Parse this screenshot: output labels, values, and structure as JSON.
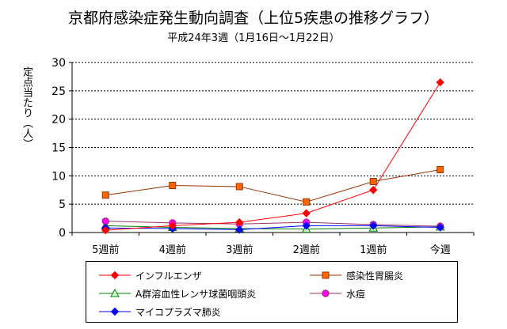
{
  "chart_data": {
    "type": "line",
    "title": "京都府感染症発生動向調査（上位5疾患の推移グラフ）",
    "subtitle": "平成24年3週（1月16日～1月22日）",
    "ylabel": "定点当たり（人）",
    "xlabel": "",
    "categories": [
      "5週前",
      "4週前",
      "3週前",
      "2週前",
      "1週前",
      "今週"
    ],
    "ylim": [
      0,
      30
    ],
    "yticks": [
      0,
      5,
      10,
      15,
      20,
      25,
      30
    ],
    "grid": true,
    "legend_position": "bottom",
    "series": [
      {
        "name": "インフルエンザ",
        "color": "#ff0000",
        "marker": "diamond",
        "marker_fill": "#ff0000",
        "values": [
          0.4,
          1.2,
          1.8,
          3.4,
          7.5,
          26.5
        ]
      },
      {
        "name": "感染性胃腸炎",
        "color": "#993300",
        "marker": "square",
        "marker_fill": "#ff6600",
        "values": [
          6.6,
          8.3,
          8.1,
          5.4,
          9.0,
          11.1
        ]
      },
      {
        "name": "A群溶血性レンサ球菌咽頭炎",
        "color": "#008000",
        "marker": "triangle",
        "marker_fill": "#ccffcc",
        "values": [
          1.2,
          0.9,
          0.7,
          0.6,
          0.8,
          1.0
        ]
      },
      {
        "name": "水痘",
        "color": "#993366",
        "marker": "circle",
        "marker_fill": "#ff00ff",
        "values": [
          2.0,
          1.7,
          1.5,
          1.8,
          1.4,
          1.1
        ]
      },
      {
        "name": "マイコプラズマ肺炎",
        "color": "#0000ff",
        "marker": "diamond",
        "marker_fill": "#0000ff",
        "values": [
          0.8,
          0.7,
          0.5,
          1.2,
          1.2,
          0.9
        ]
      }
    ]
  }
}
